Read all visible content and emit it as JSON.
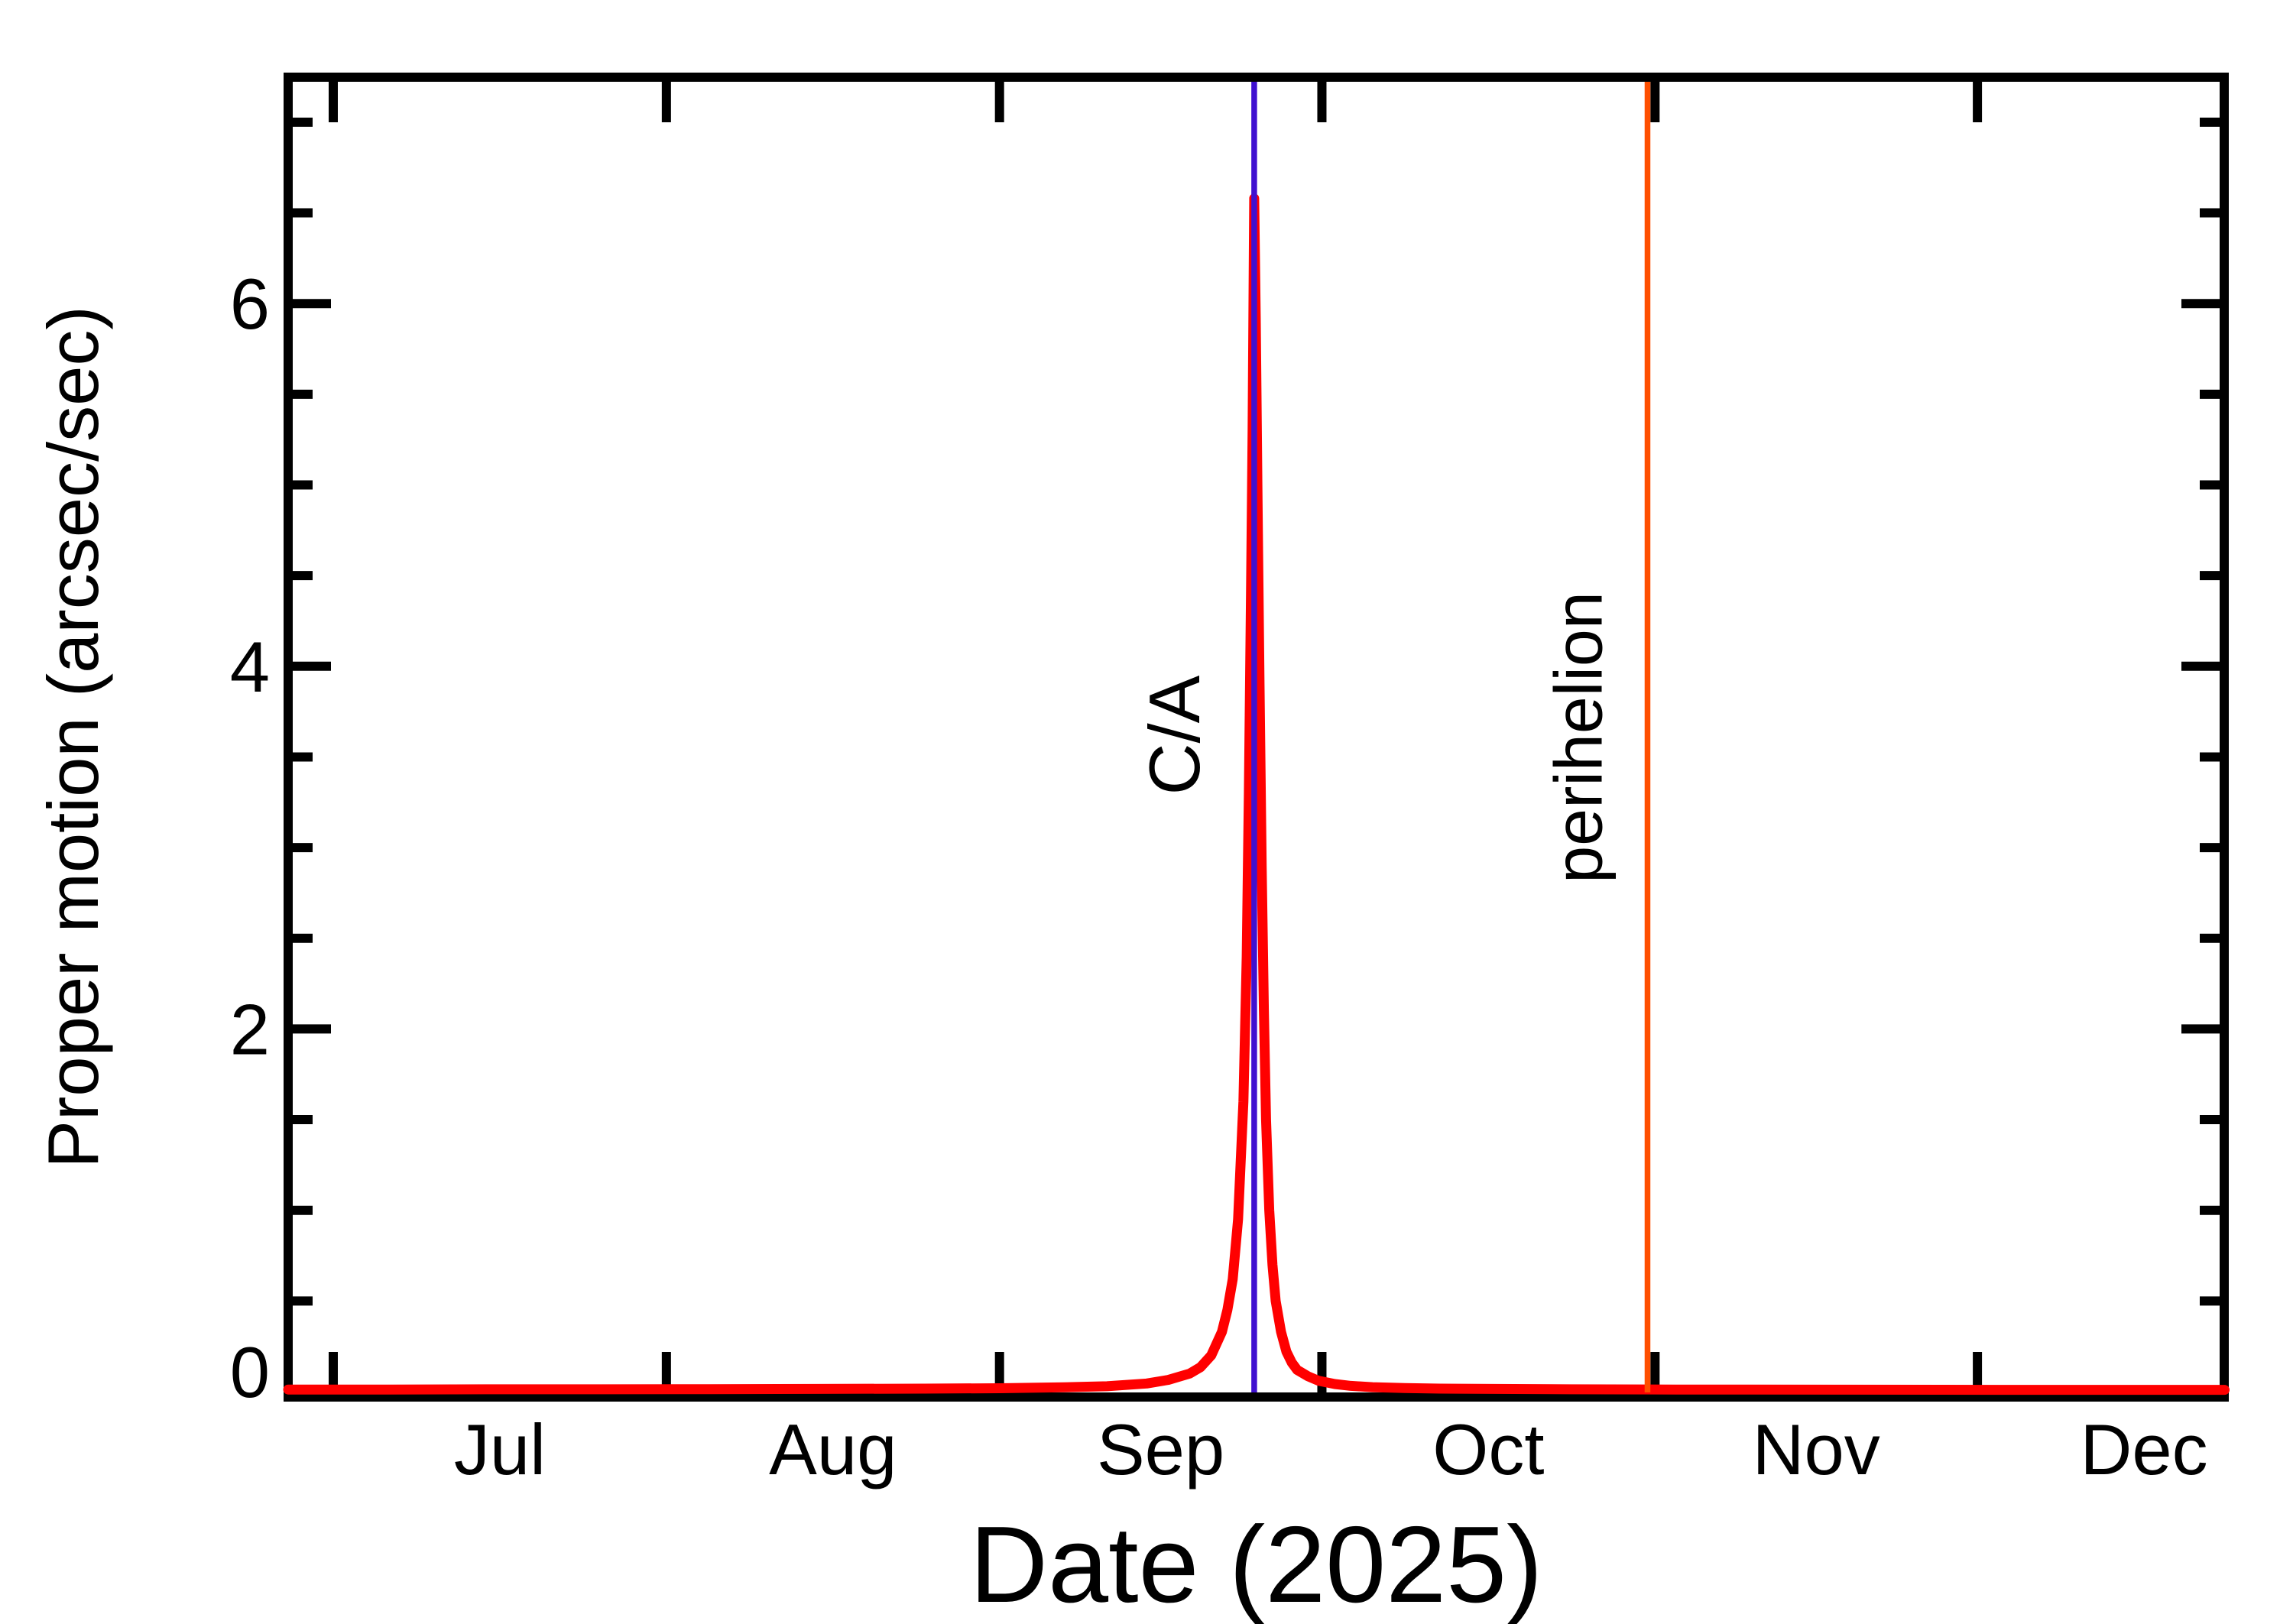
{
  "chart_data": {
    "type": "line",
    "title": "",
    "xlabel": "Date (2025)",
    "ylabel": "Proper motion (arcsec/sec)",
    "x_unit": "days, 0 = Jul 1",
    "xlim_days": [
      -4.2,
      176.0
    ],
    "ylim": [
      -0.03,
      7.25
    ],
    "grid": false,
    "legend": "none",
    "x_month_ticks": [
      {
        "label": "Jul",
        "start_day": 0,
        "mid_day": 15.5
      },
      {
        "label": "Aug",
        "start_day": 31,
        "mid_day": 46.5
      },
      {
        "label": "Sep",
        "start_day": 62,
        "mid_day": 77.0
      },
      {
        "label": "Oct",
        "start_day": 92,
        "mid_day": 107.5
      },
      {
        "label": "Nov",
        "start_day": 123,
        "mid_day": 138.0
      },
      {
        "label": "Dec",
        "start_day": 153,
        "mid_day": 168.5
      }
    ],
    "y_major_ticks": [
      {
        "value": 0,
        "label": "0"
      },
      {
        "value": 2,
        "label": "2"
      },
      {
        "value": 4,
        "label": "4"
      },
      {
        "value": 6,
        "label": "6"
      }
    ],
    "y_minor_tick_values": [
      0.5,
      1.0,
      1.5,
      2.5,
      3.0,
      3.5,
      4.5,
      5.0,
      5.5,
      6.5,
      7.0
    ],
    "series": [
      {
        "name": "proper motion",
        "color": "#ff0000",
        "peak": {
          "day": 85.7,
          "value": 6.6
        },
        "points": [
          [
            -4.2,
            0.012
          ],
          [
            5,
            0.012
          ],
          [
            15,
            0.013
          ],
          [
            25,
            0.013
          ],
          [
            35,
            0.014
          ],
          [
            45,
            0.015
          ],
          [
            55,
            0.017
          ],
          [
            62,
            0.019
          ],
          [
            68,
            0.024
          ],
          [
            72,
            0.03
          ],
          [
            75.7,
            0.045
          ],
          [
            77.7,
            0.065
          ],
          [
            79.7,
            0.1
          ],
          [
            80.7,
            0.135
          ],
          [
            81.7,
            0.2
          ],
          [
            82.7,
            0.33
          ],
          [
            83.2,
            0.45
          ],
          [
            83.7,
            0.62
          ],
          [
            84.2,
            0.95
          ],
          [
            84.7,
            1.6
          ],
          [
            85.0,
            2.4
          ],
          [
            85.2,
            3.3
          ],
          [
            85.4,
            4.4
          ],
          [
            85.55,
            5.3
          ],
          [
            85.7,
            6.58
          ],
          [
            85.85,
            5.9
          ],
          [
            86.0,
            5.0
          ],
          [
            86.2,
            3.9
          ],
          [
            86.4,
            2.9
          ],
          [
            86.6,
            2.1
          ],
          [
            86.8,
            1.5
          ],
          [
            87.1,
            1.0
          ],
          [
            87.4,
            0.7
          ],
          [
            87.7,
            0.5
          ],
          [
            88.2,
            0.33
          ],
          [
            88.7,
            0.22
          ],
          [
            89.2,
            0.16
          ],
          [
            89.7,
            0.12
          ],
          [
            90.7,
            0.085
          ],
          [
            91.7,
            0.06
          ],
          [
            93.2,
            0.042
          ],
          [
            94.7,
            0.032
          ],
          [
            96.7,
            0.025
          ],
          [
            99.7,
            0.02
          ],
          [
            103,
            0.017
          ],
          [
            108,
            0.015
          ],
          [
            115,
            0.013
          ],
          [
            125,
            0.012
          ],
          [
            140,
            0.011
          ],
          [
            155,
            0.01
          ],
          [
            167,
            0.01
          ],
          [
            176,
            0.01
          ]
        ]
      }
    ],
    "annotations": [
      {
        "name": "closest-approach",
        "label": "C/A",
        "day": 85.7,
        "color": "#3f10d0"
      },
      {
        "name": "perihelion",
        "label": "perihelion",
        "day": 122.3,
        "color": "#ff4f00"
      }
    ]
  }
}
